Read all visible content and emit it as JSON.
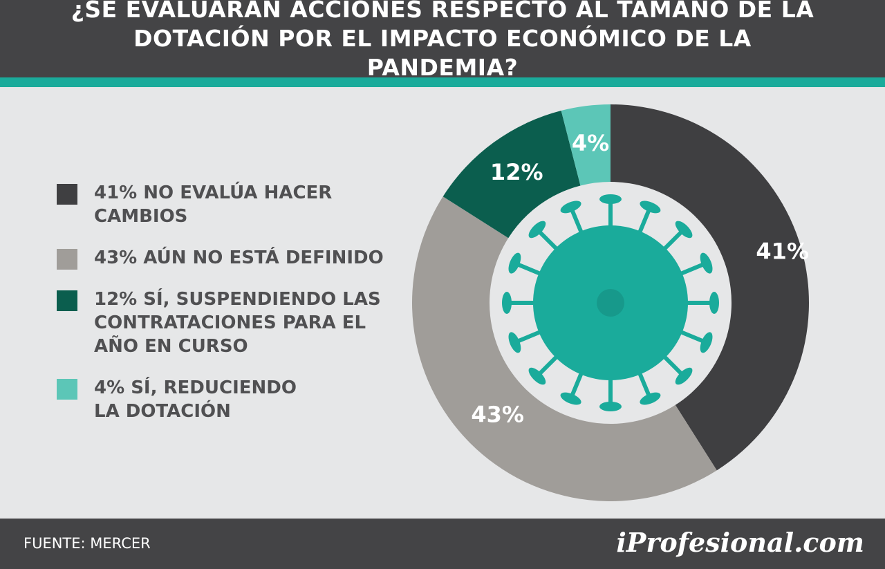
{
  "chart_data": {
    "type": "donut",
    "title": "¿SE EVALUARÁN ACCIONES RESPECTO AL TAMAÑO DE LA DOTACIÓN POR EL IMPACTO ECONÓMICO DE LA PANDEMIA?",
    "categories": [
      "41% NO EVALÚA HACER CAMBIOS",
      "43% AÚN NO ESTÁ DEFINIDO",
      "12% SÍ, SUSPENDIENDO LAS CONTRATACIONES PARA EL AÑO EN CURSO",
      "4% SÍ, REDUCIENDO LA DOTACIÓN"
    ],
    "values": [
      41,
      43,
      12,
      4
    ],
    "value_labels": [
      "41%",
      "43%",
      "12%",
      "4%"
    ],
    "colors": [
      "#3f3f41",
      "#a09d99",
      "#0b5e4e",
      "#5cc6b7"
    ],
    "source": "FUENTE:  MERCER",
    "brand": "iProfesional.com"
  }
}
